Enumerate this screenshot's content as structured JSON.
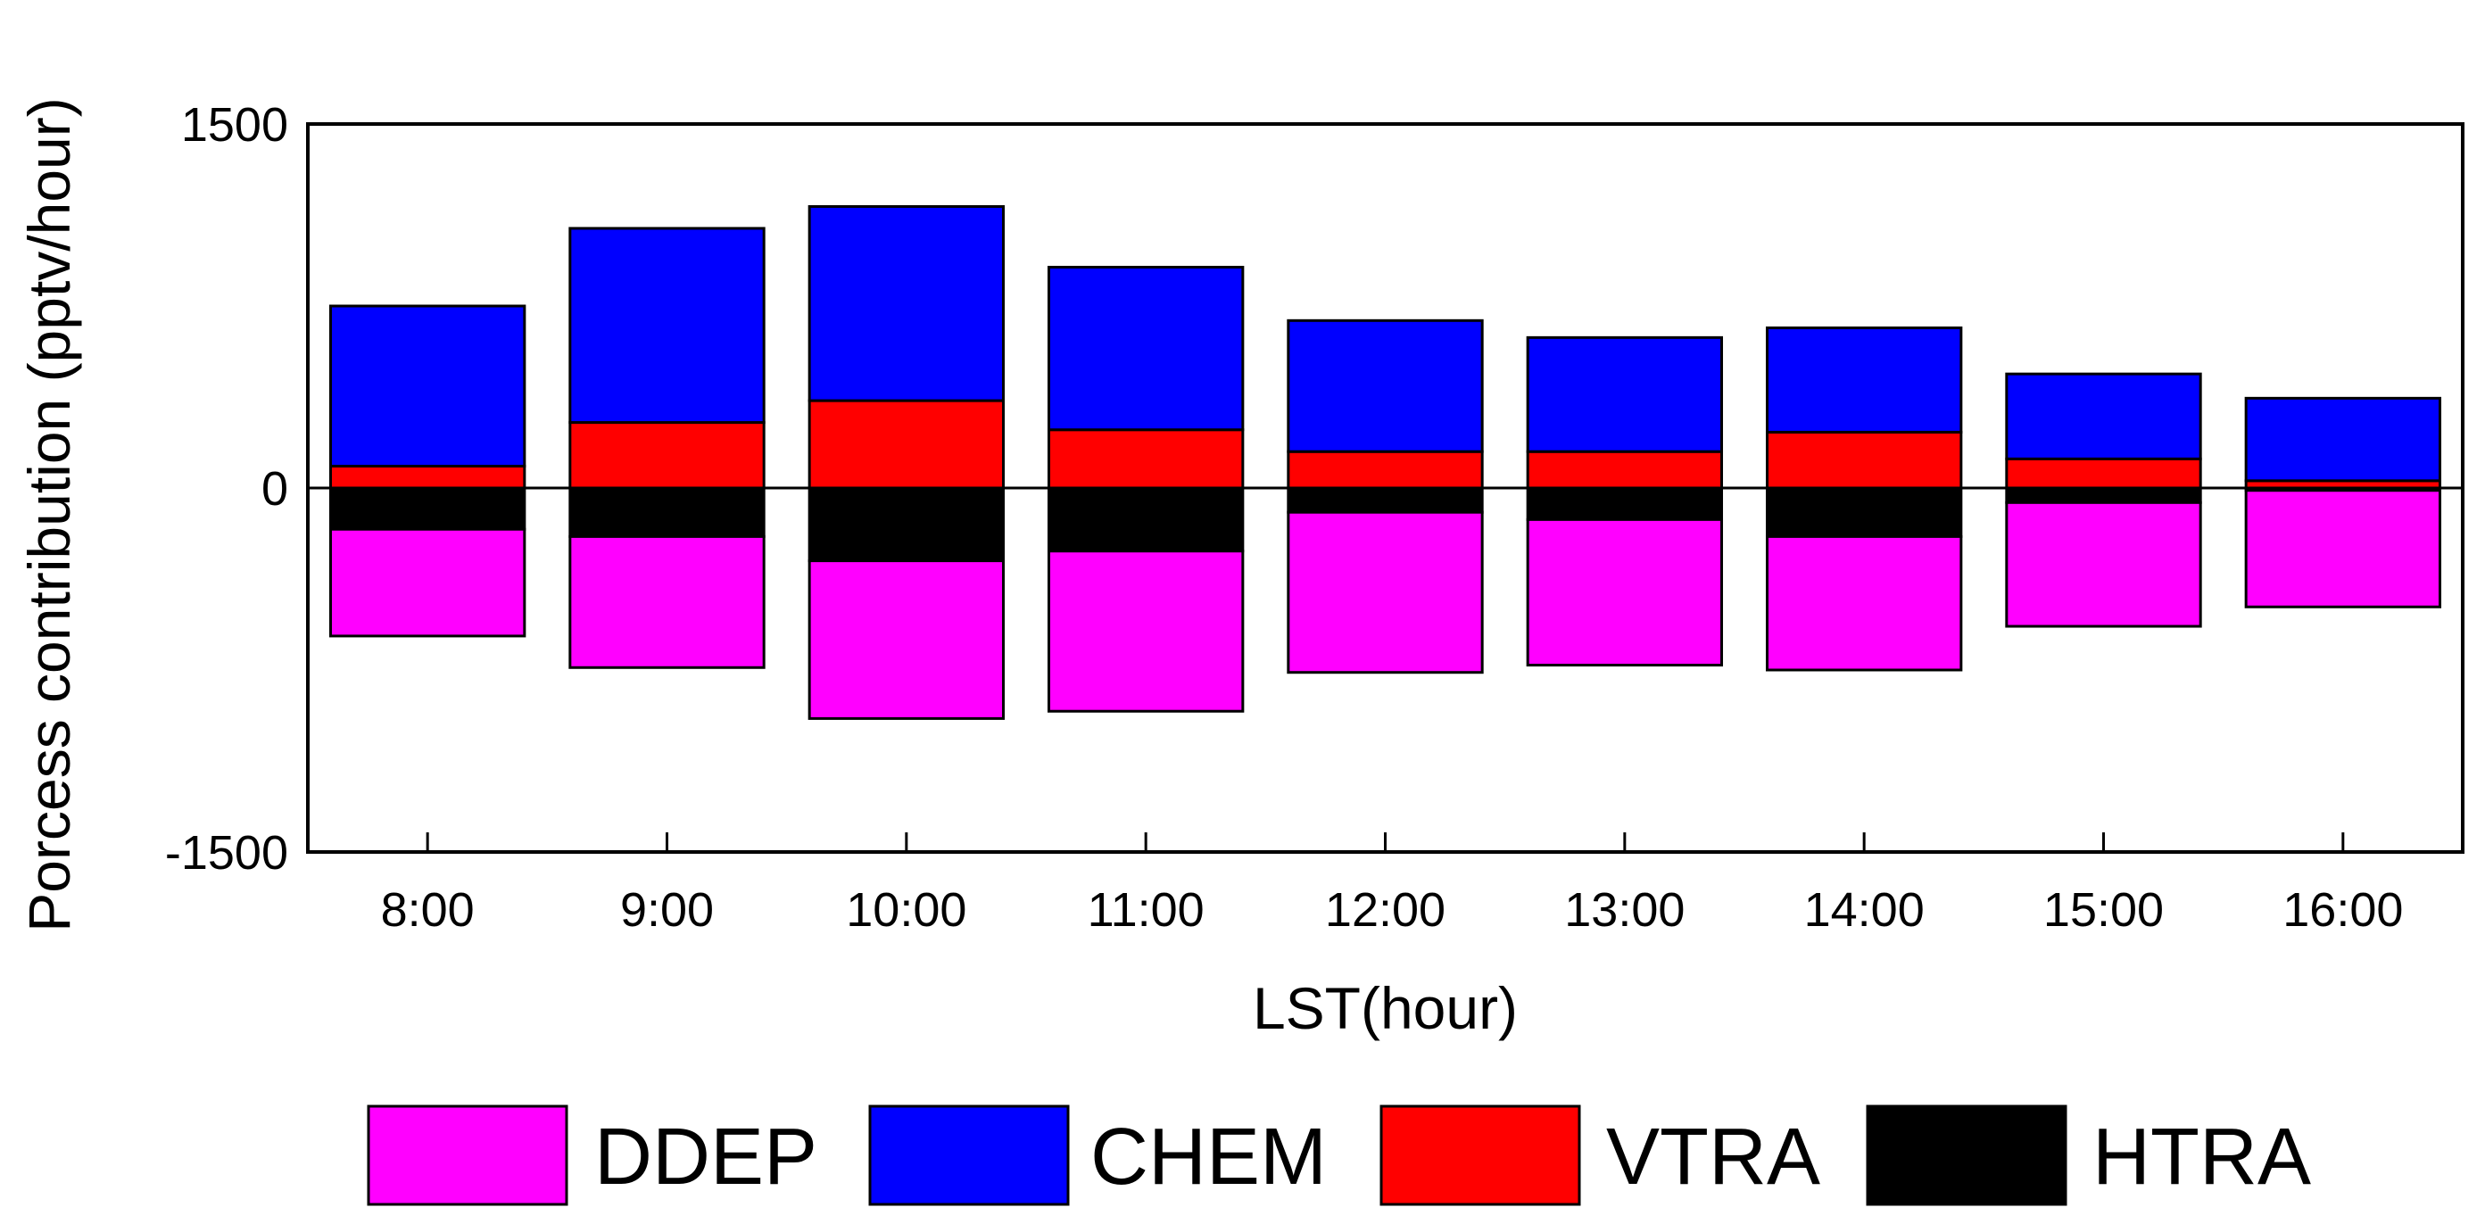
{
  "chart_data": {
    "type": "bar",
    "stacked": true,
    "xlabel": "LST(hour)",
    "ylabel": "Porcess contribution (pptv/hour)",
    "ylim": [
      -1500,
      1500
    ],
    "yticks": [
      -1500,
      0,
      1500
    ],
    "categories": [
      "8:00",
      "9:00",
      "10:00",
      "11:00",
      "12:00",
      "13:00",
      "14:00",
      "15:00",
      "16:00"
    ],
    "series": [
      {
        "name": "DDEP",
        "color": "#ff00ff",
        "values": [
          -440,
          -540,
          -650,
          -660,
          -660,
          -600,
          -550,
          -510,
          -480
        ]
      },
      {
        "name": "CHEM",
        "color": "#0000ff",
        "values": [
          660,
          800,
          800,
          670,
          540,
          470,
          430,
          350,
          340
        ]
      },
      {
        "name": "VTRA",
        "color": "#ff0000",
        "values": [
          90,
          270,
          360,
          240,
          150,
          150,
          230,
          120,
          30
        ]
      },
      {
        "name": "HTRA",
        "color": "#000000",
        "values": [
          -170,
          -200,
          -300,
          -260,
          -100,
          -130,
          -200,
          -60,
          -10
        ]
      }
    ],
    "legend": {
      "position": "bottom",
      "order": [
        "DDEP",
        "CHEM",
        "VTRA",
        "HTRA"
      ]
    },
    "grid": false
  }
}
